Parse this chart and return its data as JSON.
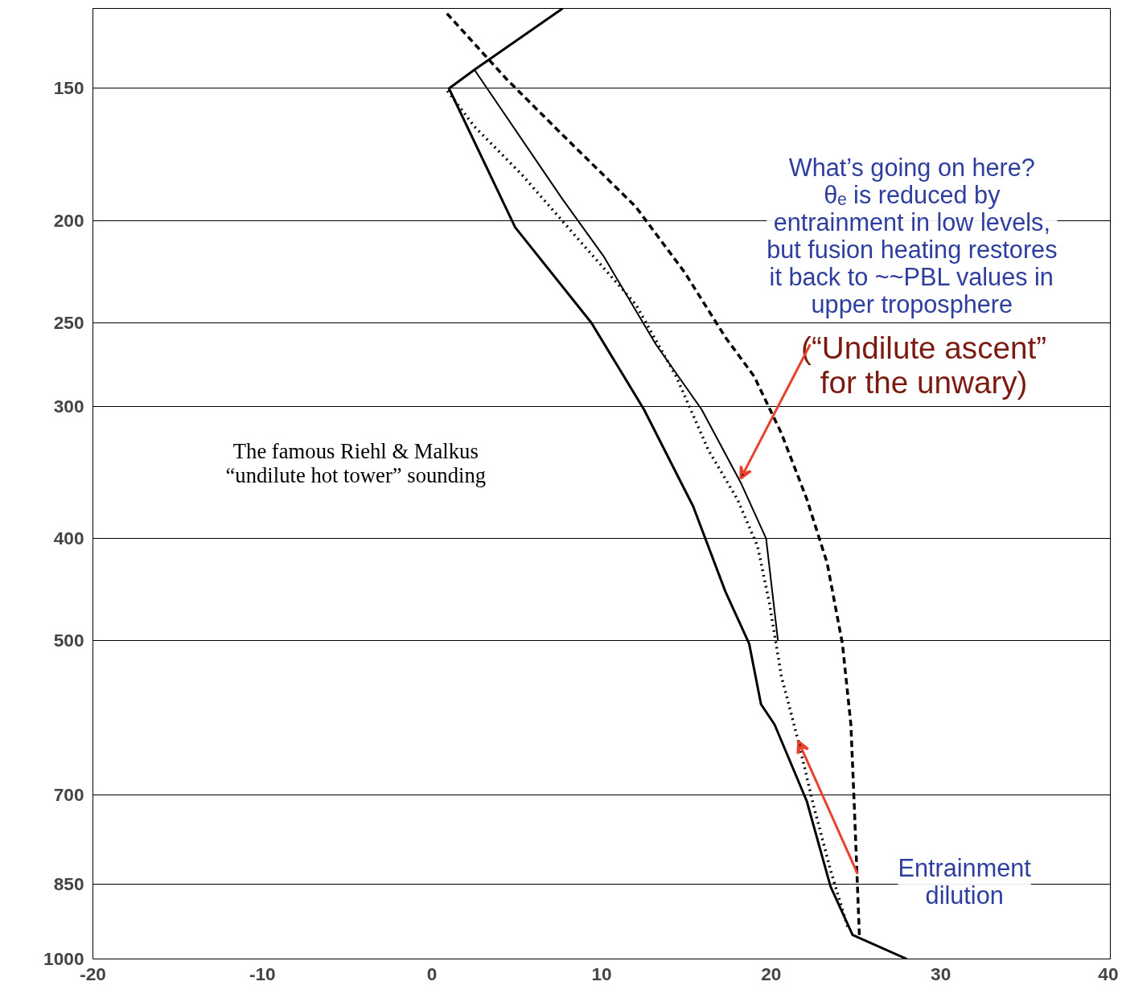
{
  "chart_data": {
    "type": "line",
    "xlim": [
      -20,
      40
    ],
    "xticks": [
      -20,
      -10,
      0,
      10,
      20,
      30,
      40
    ],
    "ylim": [
      1000,
      126
    ],
    "yticks": [
      150,
      200,
      250,
      300,
      400,
      500,
      700,
      850,
      1000
    ],
    "log": "y",
    "grid": "y",
    "series": [
      {
        "color": "#000000",
        "line_style": "solid",
        "x": [
          28.0,
          24.8,
          23.5,
          22.1,
          20.2,
          19.4,
          18.7,
          17.3,
          15.4,
          12.5,
          9.4,
          4.9,
          1.0,
          2.5,
          7.7
        ],
        "values": [
          1000,
          949,
          854,
          709,
          600,
          574,
          503,
          449,
          373,
          302,
          250,
          203,
          150,
          144,
          126
        ]
      },
      {
        "color": "#000000",
        "line_style": "solid",
        "x": [
          20.4,
          19.7,
          18.2,
          15.9,
          13.2,
          10.1,
          7.7,
          2.5
        ],
        "values": [
          500,
          400,
          354,
          302,
          262,
          216,
          191,
          144
        ]
      },
      {
        "color": "#000000",
        "line_style": "dotted",
        "x": [
          24.5,
          23.5,
          22.5,
          21.6,
          20.6,
          19.9,
          19.2,
          18.0,
          16.3,
          14.4,
          12.0,
          8.7,
          5.3,
          2.5,
          0.8
        ],
        "values": [
          932,
          824,
          716,
          622,
          540,
          461,
          407,
          367,
          330,
          281,
          240,
          209,
          181,
          163,
          150
        ]
      },
      {
        "color": "#000000",
        "line_style": "dashed",
        "x": [
          25.2,
          24.9,
          24.7,
          24.2,
          23.3,
          22.1,
          20.6,
          19.0,
          17.3,
          14.9,
          12.0,
          7.7,
          4.4,
          0.8
        ],
        "values": [
          949,
          716,
          600,
          503,
          422,
          367,
          318,
          281,
          258,
          224,
          194,
          166,
          147,
          127
        ]
      }
    ],
    "annotations": [
      "What’s going on here?\nθₑ is reduced by\nentrainment in low levels,\nbut fusion heating restores\nit back to ~~PBL values in\nupper troposphere",
      {
        "text": "(“Undilute ascent”\nfor the unwary)",
        "x": 18.2,
        "y": 351
      },
      "The famous Riehl & Malkus\n“undilute hot tower” sounding",
      "Entrainment\ndilution"
    ]
  }
}
